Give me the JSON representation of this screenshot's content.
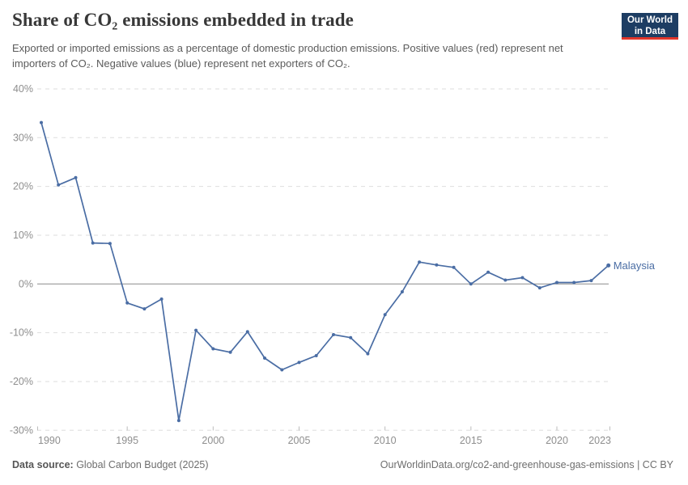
{
  "header": {
    "title": "Share of CO₂ emissions embedded in trade",
    "subtitle": "Exported or imported emissions as a percentage of domestic production emissions. Positive values (red) represent net importers of CO₂. Negative values (blue) represent net exporters of CO₂."
  },
  "logo": {
    "line1": "Our World",
    "line2": "in Data",
    "bg_color": "#1d3d63",
    "stripe_color": "#e2362b"
  },
  "chart_data": {
    "type": "line",
    "title": "Share of CO₂ emissions embedded in trade",
    "x": [
      1990,
      1991,
      1992,
      1993,
      1994,
      1995,
      1996,
      1997,
      1998,
      1999,
      2000,
      2001,
      2002,
      2003,
      2004,
      2005,
      2006,
      2007,
      2008,
      2009,
      2010,
      2011,
      2012,
      2013,
      2014,
      2015,
      2016,
      2017,
      2018,
      2019,
      2020,
      2021,
      2022,
      2023
    ],
    "series": [
      {
        "name": "Malaysia",
        "color": "#4a6da4",
        "values": [
          33.1,
          20.3,
          21.8,
          8.4,
          8.3,
          -3.9,
          -5.1,
          -3.1,
          -28,
          -9.5,
          -13.3,
          -14,
          -9.8,
          -15.2,
          -17.6,
          -16.1,
          -14.7,
          -10.4,
          -11,
          -14.3,
          -6.3,
          -1.6,
          4.5,
          3.9,
          3.4,
          0,
          2.4,
          0.8,
          1.3,
          -0.8,
          0.3,
          0.3,
          0.7,
          3.8
        ]
      }
    ],
    "xlabel": "",
    "ylabel": "",
    "ylim": [
      -30,
      40
    ],
    "xlim": [
      1990,
      2023
    ],
    "yticks": [
      40,
      30,
      20,
      10,
      0,
      -10,
      -20,
      -30
    ],
    "ytick_suffix": "%",
    "xticks": [
      1990,
      1995,
      2000,
      2005,
      2010,
      2015,
      2020,
      2023
    ],
    "grid": "horizontal-dashed",
    "zero_line": true,
    "legend_position": "end-of-line-label",
    "end_label": "Malaysia",
    "grid_color": "#dedede",
    "zero_line_color": "#8a8a8a",
    "tick_label_color": "#8e8e8e"
  },
  "footer": {
    "source_label": "Data source:",
    "source_value": " Global Carbon Budget (2025)",
    "credit": "OurWorldinData.org/co2-and-greenhouse-gas-emissions | CC BY"
  }
}
